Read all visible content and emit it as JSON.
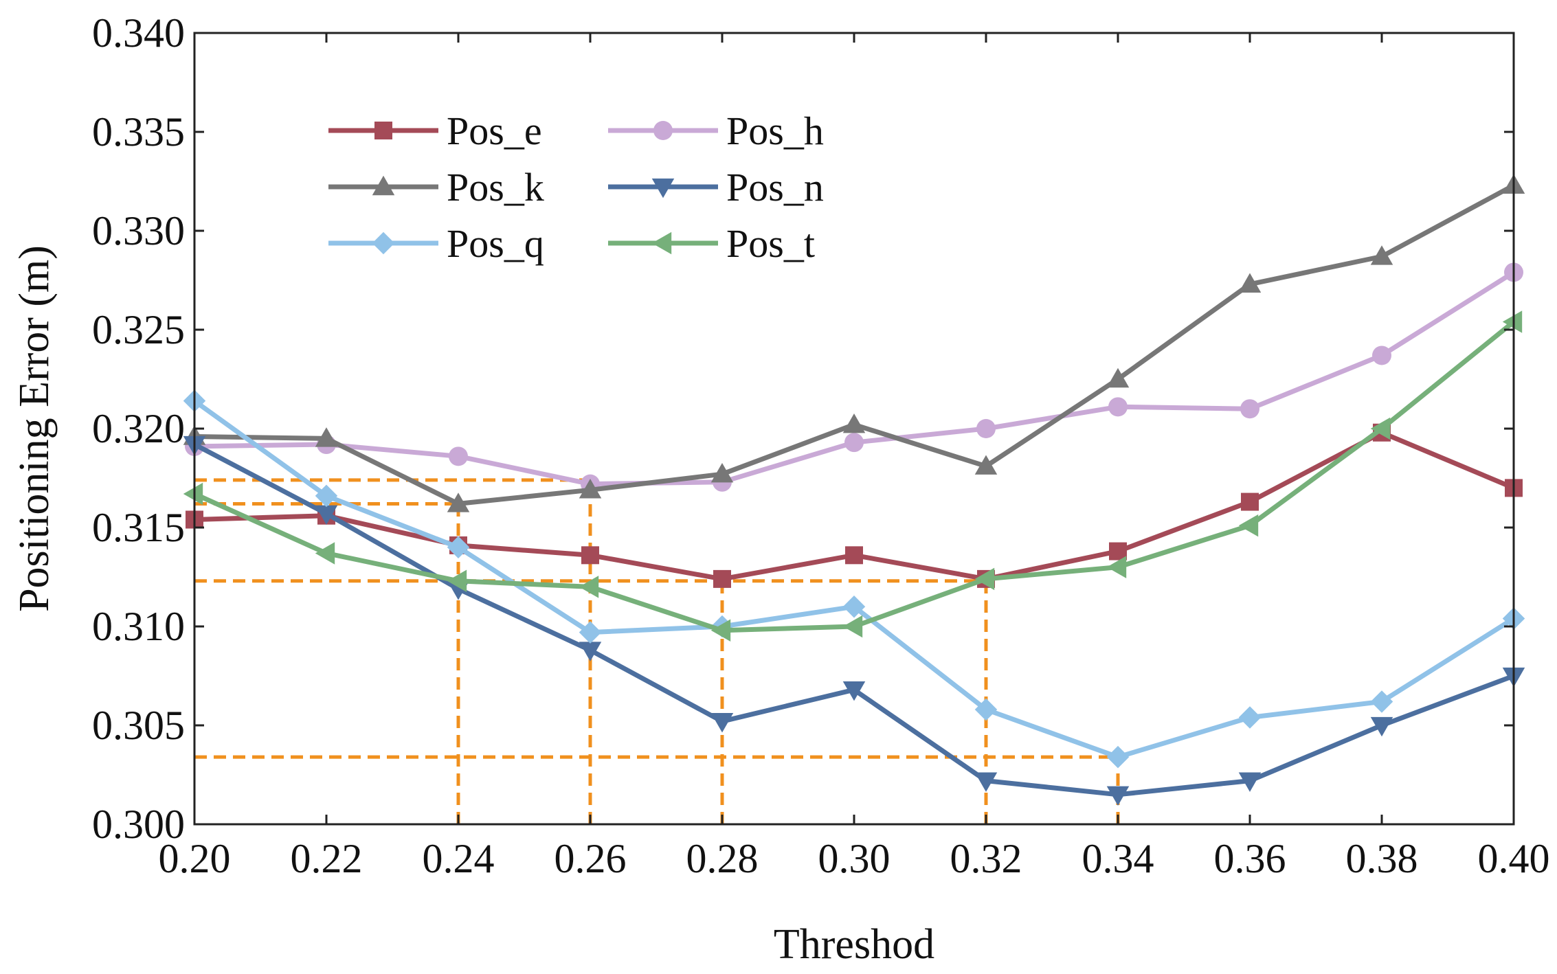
{
  "chart_data": {
    "type": "line",
    "title": "",
    "xlabel": "Threshod",
    "ylabel": "Positioning Error (m)",
    "xlim": [
      0.2,
      0.4
    ],
    "ylim": [
      0.3,
      0.34
    ],
    "x": [
      0.2,
      0.22,
      0.24,
      0.26,
      0.28,
      0.3,
      0.32,
      0.34,
      0.36,
      0.38,
      0.4
    ],
    "x_tick_labels": [
      "0.20",
      "0.22",
      "0.24",
      "0.26",
      "0.28",
      "0.30",
      "0.32",
      "0.34",
      "0.36",
      "0.38",
      "0.40"
    ],
    "y_ticks": [
      0.3,
      0.305,
      0.31,
      0.315,
      0.32,
      0.325,
      0.33,
      0.335,
      0.34
    ],
    "y_tick_labels": [
      "0.300",
      "0.305",
      "0.310",
      "0.315",
      "0.320",
      "0.325",
      "0.330",
      "0.335",
      "0.340"
    ],
    "grid": false,
    "legend_position": "upper-left",
    "series": [
      {
        "name": "Pos_e",
        "color": "#a44a57",
        "marker": "square",
        "values": [
          0.3154,
          0.3156,
          0.3141,
          0.3136,
          0.3124,
          0.3136,
          0.3124,
          0.3138,
          0.3163,
          0.3198,
          0.317
        ]
      },
      {
        "name": "Pos_h",
        "color": "#c9a9d6",
        "marker": "circle",
        "values": [
          0.3191,
          0.3192,
          0.3186,
          0.3172,
          0.3173,
          0.3193,
          0.32,
          0.3211,
          0.321,
          0.3237,
          0.3279
        ]
      },
      {
        "name": "Pos_k",
        "color": "#777777",
        "marker": "triangle-up",
        "values": [
          0.3196,
          0.3195,
          0.3162,
          0.3169,
          0.3177,
          0.3202,
          0.3181,
          0.3225,
          0.3273,
          0.3287,
          0.3323
        ]
      },
      {
        "name": "Pos_n",
        "color": "#4c6f9f",
        "marker": "triangle-down",
        "values": [
          0.3192,
          0.3157,
          0.3119,
          0.3088,
          0.3052,
          0.3068,
          0.3022,
          0.3015,
          0.3022,
          0.305,
          0.3075
        ]
      },
      {
        "name": "Pos_q",
        "color": "#90c2e8",
        "marker": "diamond",
        "values": [
          0.3214,
          0.3166,
          0.314,
          0.3097,
          0.31,
          0.311,
          0.3058,
          0.3034,
          0.3054,
          0.3062,
          0.3104
        ]
      },
      {
        "name": "Pos_t",
        "color": "#76b07a",
        "marker": "triangle-left",
        "values": [
          0.3167,
          0.3137,
          0.3123,
          0.312,
          0.3098,
          0.31,
          0.3124,
          0.313,
          0.3151,
          0.32,
          0.3254
        ]
      }
    ],
    "reference_lines": {
      "color": "#f0901e",
      "horizontal": [
        0.3174,
        0.3162,
        0.3123,
        0.3034
      ],
      "vertical": [
        0.24,
        0.26,
        0.28,
        0.32,
        0.34
      ],
      "horizontal_extent_x": [
        0.26,
        0.24,
        0.32,
        0.34
      ],
      "vertical_extent_y": [
        0.3162,
        0.3174,
        0.3124,
        0.3124,
        0.3034
      ]
    }
  }
}
